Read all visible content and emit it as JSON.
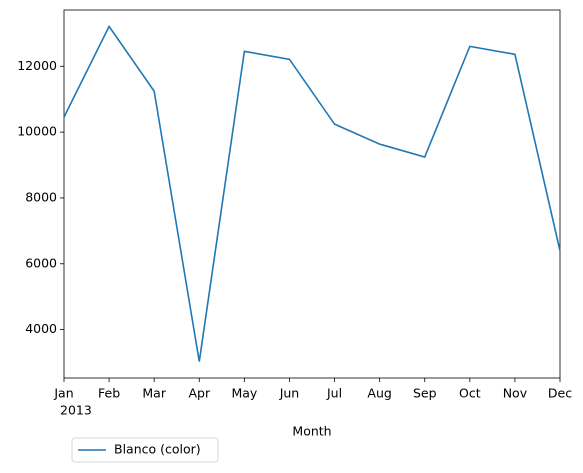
{
  "chart_data": {
    "type": "line",
    "categories": [
      "Jan",
      "Feb",
      "Mar",
      "Apr",
      "May",
      "Jun",
      "Jul",
      "Aug",
      "Sep",
      "Oct",
      "Nov",
      "Dec"
    ],
    "x_year_label": "2013",
    "xlabel": "Month",
    "series": [
      {
        "name": "Blanco (color)",
        "color": "#1f77b4",
        "values": [
          10455,
          13212,
          11242,
          3030,
          12455,
          12212,
          10242,
          9636,
          9242,
          12606,
          12364,
          6394
        ]
      }
    ],
    "ylim": [
      2530,
      13710
    ],
    "yticks": [
      4000,
      6000,
      8000,
      10000,
      12000
    ],
    "legend": "below-left",
    "grid": false
  }
}
